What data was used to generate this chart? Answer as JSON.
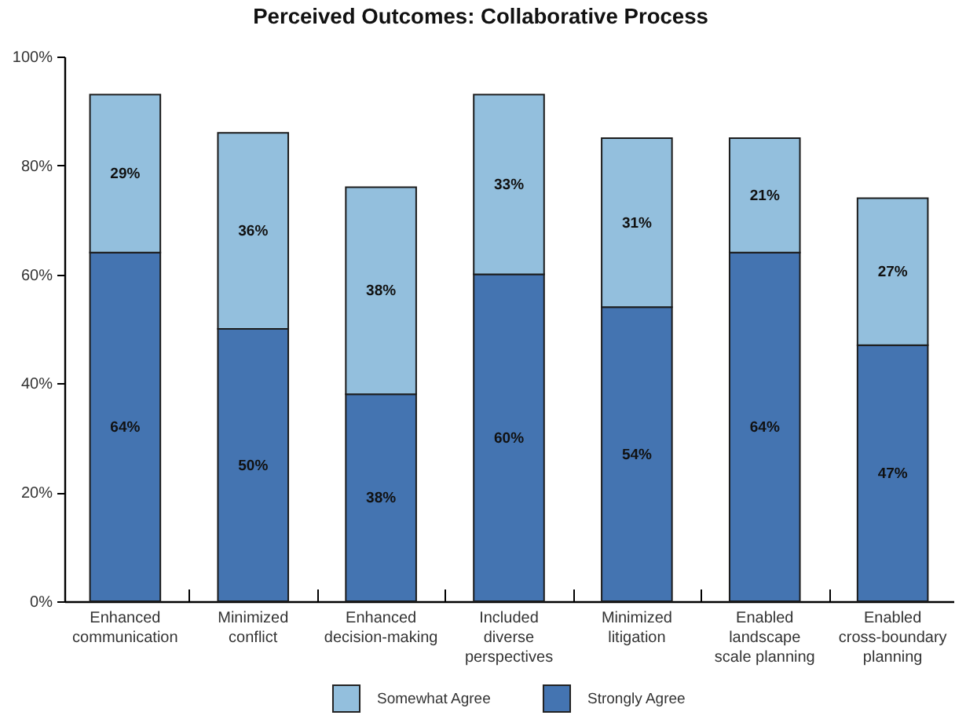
{
  "chart_data": {
    "type": "bar",
    "title": "Perceived Outcomes: Collaborative Process",
    "categories": [
      "Enhanced communication",
      "Minimized conflict",
      "Enhanced decision-making",
      "Included diverse perspectives",
      "Minimized litigation",
      "Enabled landscape scale planning",
      "Enabled cross-boundary planning"
    ],
    "stacked": true,
    "series": [
      {
        "name": "Strongly Agree",
        "color": "#4474b1",
        "values": [
          64,
          50,
          38,
          60,
          54,
          64,
          47
        ],
        "value_labels": [
          "64%",
          "50%",
          "38%",
          "60%",
          "54%",
          "64%",
          "47%"
        ]
      },
      {
        "name": "Somewhat Agree",
        "color": "#93bfdd",
        "values": [
          29,
          36,
          38,
          33,
          31,
          21,
          27
        ],
        "value_labels": [
          "29%",
          "36%",
          "38%",
          "33%",
          "31%",
          "21%",
          "27%"
        ]
      }
    ],
    "ylim": [
      0,
      100
    ],
    "yticks": [
      {
        "value": 0,
        "label": "0%"
      },
      {
        "value": 20,
        "label": "20%"
      },
      {
        "value": 40,
        "label": "40%"
      },
      {
        "value": 60,
        "label": "60%"
      },
      {
        "value": 80,
        "label": "80%"
      },
      {
        "value": 100,
        "label": "100%"
      }
    ],
    "legend": "bottom"
  }
}
